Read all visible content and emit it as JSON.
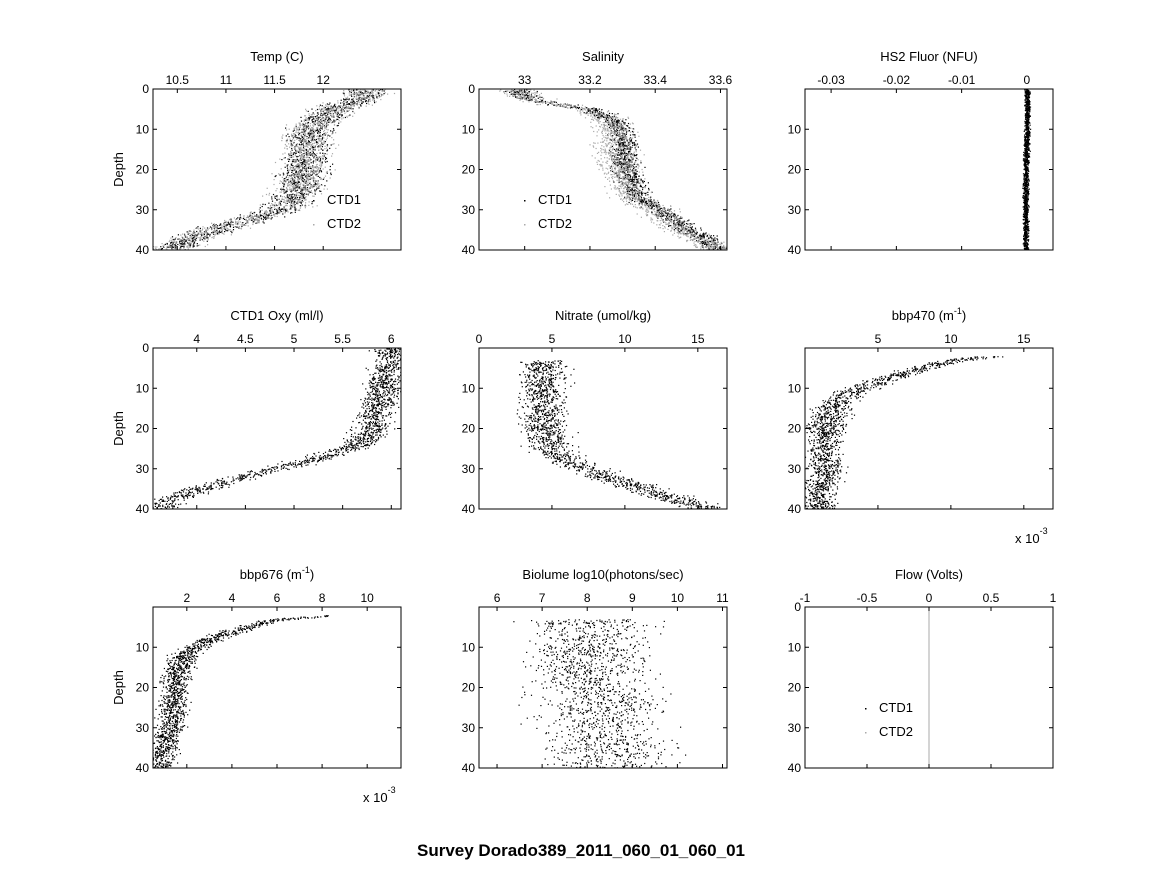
{
  "figure": {
    "suptitle": "Survey Dorado389_2011_060_01_060_01"
  },
  "chart_data": [
    {
      "id": "temp",
      "type": "scatter",
      "title": "Temp (C)",
      "title_sup": "",
      "xlabel": "",
      "ylabel": "Depth",
      "xlim": [
        10.25,
        12.8
      ],
      "ylim": [
        0,
        40
      ],
      "y_reversed": true,
      "x_axis": "top",
      "xticks": [
        10.5,
        11,
        11.5,
        12
      ],
      "xtick_labels": [
        "10.5",
        "11",
        "11.5",
        "12"
      ],
      "yticks": [
        0,
        10,
        20,
        30,
        40
      ],
      "ytick_labels": [
        "0",
        "10",
        "20",
        "30",
        "40"
      ],
      "multiplier": "",
      "legend": [
        "CTD1",
        "CTD2"
      ],
      "legend_position": "lower-right",
      "series": [
        {
          "name": "CTD1",
          "color": "#000000",
          "profile": [
            [
              0,
              12.45
            ],
            [
              2,
              12.4
            ],
            [
              5,
              12.1
            ],
            [
              10,
              11.85
            ],
            [
              15,
              11.82
            ],
            [
              20,
              11.8
            ],
            [
              24,
              11.76
            ],
            [
              28,
              11.65
            ],
            [
              30,
              11.55
            ],
            [
              32,
              11.3
            ],
            [
              34,
              11.0
            ],
            [
              36,
              10.75
            ],
            [
              38,
              10.55
            ],
            [
              40,
              10.4
            ]
          ],
          "spread": 0.22
        },
        {
          "name": "CTD2",
          "color": "#aaaaaa",
          "profile": [
            [
              0,
              12.45
            ],
            [
              2,
              12.4
            ],
            [
              5,
              12.1
            ],
            [
              10,
              11.85
            ],
            [
              15,
              11.82
            ],
            [
              20,
              11.8
            ],
            [
              24,
              11.76
            ],
            [
              28,
              11.65
            ],
            [
              30,
              11.55
            ],
            [
              32,
              11.3
            ],
            [
              34,
              11.0
            ],
            [
              36,
              10.75
            ],
            [
              38,
              10.55
            ],
            [
              40,
              10.4
            ]
          ],
          "spread": 0.25
        }
      ]
    },
    {
      "id": "salinity",
      "type": "scatter",
      "title": "Salinity",
      "title_sup": "",
      "xlabel": "",
      "ylabel": "",
      "xlim": [
        32.86,
        33.62
      ],
      "ylim": [
        0,
        40
      ],
      "y_reversed": true,
      "x_axis": "top",
      "xticks": [
        33,
        33.2,
        33.4,
        33.6
      ],
      "xtick_labels": [
        "33",
        "33.2",
        "33.4",
        "33.6"
      ],
      "yticks": [
        0,
        10,
        20,
        30,
        40
      ],
      "ytick_labels": [
        "0",
        "10",
        "20",
        "30",
        "40"
      ],
      "multiplier": "",
      "legend": [
        "CTD1",
        "CTD2"
      ],
      "legend_position": "lower-left",
      "series": [
        {
          "name": "CTD1",
          "color": "#000000",
          "profile": [
            [
              0,
              32.98
            ],
            [
              2,
              33.0
            ],
            [
              3,
              33.05
            ],
            [
              5,
              33.2
            ],
            [
              8,
              33.28
            ],
            [
              12,
              33.3
            ],
            [
              20,
              33.31
            ],
            [
              27,
              33.35
            ],
            [
              30,
              33.42
            ],
            [
              34,
              33.48
            ],
            [
              37,
              33.55
            ],
            [
              40,
              33.6
            ]
          ],
          "spread": 0.04
        },
        {
          "name": "CTD2",
          "color": "#aaaaaa",
          "profile": [
            [
              0,
              32.98
            ],
            [
              2,
              33.0
            ],
            [
              3,
              33.05
            ],
            [
              5,
              33.2
            ],
            [
              8,
              33.26
            ],
            [
              12,
              33.28
            ],
            [
              20,
              33.29
            ],
            [
              27,
              33.33
            ],
            [
              30,
              33.4
            ],
            [
              34,
              33.46
            ],
            [
              37,
              33.53
            ],
            [
              40,
              33.6
            ]
          ],
          "spread": 0.06
        }
      ]
    },
    {
      "id": "hs2",
      "type": "scatter",
      "title": "HS2 Fluor (NFU)",
      "title_sup": "",
      "xlabel": "",
      "ylabel": "",
      "xlim": [
        -0.034,
        0.004
      ],
      "ylim": [
        0,
        40
      ],
      "y_reversed": true,
      "x_axis": "top",
      "xticks": [
        -0.03,
        -0.02,
        -0.01,
        0
      ],
      "xtick_labels": [
        "-0.03",
        "-0.02",
        "-0.01",
        "0"
      ],
      "yticks": [
        10,
        20,
        30,
        40
      ],
      "ytick_labels": [
        "10",
        "20",
        "30",
        "40"
      ],
      "multiplier": "",
      "legend": [],
      "legend_position": "",
      "series": [
        {
          "name": "",
          "color": "#000000",
          "profile": [
            [
              0,
              0.0
            ],
            [
              10,
              0.0
            ],
            [
              20,
              -0.0002
            ],
            [
              30,
              -0.0002
            ],
            [
              40,
              -0.0002
            ]
          ],
          "spread": 0.0004
        }
      ]
    },
    {
      "id": "oxy",
      "type": "scatter",
      "title": "CTD1 Oxy (ml/l)",
      "title_sup": "",
      "xlabel": "",
      "ylabel": "Depth",
      "xlim": [
        3.55,
        6.1
      ],
      "ylim": [
        0,
        40
      ],
      "y_reversed": true,
      "x_axis": "top",
      "xticks": [
        4,
        4.5,
        5,
        5.5,
        6
      ],
      "xtick_labels": [
        "4",
        "4.5",
        "5",
        "5.5",
        "6"
      ],
      "yticks": [
        0,
        10,
        20,
        30,
        40
      ],
      "ytick_labels": [
        "0",
        "10",
        "20",
        "30",
        "40"
      ],
      "multiplier": "",
      "legend": [],
      "legend_position": "",
      "series": [
        {
          "name": "",
          "color": "#000000",
          "profile": [
            [
              0,
              6.0
            ],
            [
              5,
              5.95
            ],
            [
              10,
              5.9
            ],
            [
              15,
              5.85
            ],
            [
              20,
              5.8
            ],
            [
              24,
              5.65
            ],
            [
              27,
              5.3
            ],
            [
              30,
              4.8
            ],
            [
              33,
              4.3
            ],
            [
              36,
              3.9
            ],
            [
              38,
              3.7
            ],
            [
              40,
              3.6
            ]
          ],
          "spread": 0.18
        }
      ]
    },
    {
      "id": "nitrate",
      "type": "scatter",
      "title": "Nitrate (umol/kg)",
      "title_sup": "",
      "xlabel": "",
      "ylabel": "",
      "xlim": [
        0,
        17
      ],
      "ylim": [
        0,
        40
      ],
      "y_reversed": true,
      "x_axis": "top",
      "xticks": [
        0,
        5,
        10,
        15
      ],
      "xtick_labels": [
        "0",
        "5",
        "10",
        "15"
      ],
      "yticks": [
        10,
        20,
        30,
        40
      ],
      "ytick_labels": [
        "10",
        "20",
        "30",
        "40"
      ],
      "multiplier": "",
      "legend": [],
      "legend_position": "",
      "series": [
        {
          "name": "",
          "color": "#000000",
          "profile": [
            [
              3,
              4.5
            ],
            [
              10,
              4.3
            ],
            [
              20,
              4.5
            ],
            [
              25,
              5.0
            ],
            [
              28,
              6.0
            ],
            [
              31,
              8.0
            ],
            [
              34,
              10.5
            ],
            [
              37,
              13.0
            ],
            [
              40,
              16.0
            ]
          ],
          "spread": 1.5
        }
      ]
    },
    {
      "id": "bbp470",
      "type": "scatter",
      "title": "bbp470 (m",
      "title_sup": "-1",
      "xlabel": "",
      "ylabel": "",
      "xlim": [
        0,
        0.017
      ],
      "ylim": [
        0,
        40
      ],
      "y_reversed": true,
      "x_axis": "top",
      "xticks": [
        0.005,
        0.01,
        0.015
      ],
      "xtick_labels": [
        "5",
        "10",
        "15"
      ],
      "yticks": [
        10,
        20,
        30,
        40
      ],
      "ytick_labels": [
        "10",
        "20",
        "30",
        "40"
      ],
      "multiplier": "x 10",
      "multiplier_exp": "-3",
      "legend": [],
      "legend_position": "",
      "series": [
        {
          "name": "",
          "color": "#000000",
          "profile": [
            [
              2,
              0.013
            ],
            [
              3,
              0.01
            ],
            [
              5,
              0.008
            ],
            [
              8,
              0.005
            ],
            [
              12,
              0.0025
            ],
            [
              18,
              0.0015
            ],
            [
              25,
              0.0012
            ],
            [
              30,
              0.0015
            ],
            [
              35,
              0.001
            ],
            [
              40,
              0.0008
            ]
          ],
          "spread": 0.0012
        }
      ]
    },
    {
      "id": "bbp676",
      "type": "scatter",
      "title": "bbp676 (m",
      "title_sup": "-1",
      "xlabel": "",
      "ylabel": "Depth",
      "xlim": [
        0.0005,
        0.0115
      ],
      "ylim": [
        0,
        40
      ],
      "y_reversed": true,
      "x_axis": "top",
      "xticks": [
        0.002,
        0.004,
        0.006,
        0.008,
        0.01
      ],
      "xtick_labels": [
        "2",
        "4",
        "6",
        "8",
        "10"
      ],
      "yticks": [
        10,
        20,
        30,
        40
      ],
      "ytick_labels": [
        "10",
        "20",
        "30",
        "40"
      ],
      "multiplier": "x 10",
      "multiplier_exp": "-3",
      "legend": [],
      "legend_position": "",
      "series": [
        {
          "name": "",
          "color": "#000000",
          "profile": [
            [
              2,
              0.0085
            ],
            [
              3,
              0.006
            ],
            [
              5,
              0.0045
            ],
            [
              8,
              0.003
            ],
            [
              12,
              0.0018
            ],
            [
              18,
              0.0015
            ],
            [
              25,
              0.0014
            ],
            [
              30,
              0.0013
            ],
            [
              35,
              0.001
            ],
            [
              40,
              0.0008
            ]
          ],
          "spread": 0.0006
        }
      ]
    },
    {
      "id": "biolume",
      "type": "scatter",
      "title": "Biolume log10(photons/sec)",
      "title_sup": "",
      "xlabel": "",
      "ylabel": "",
      "xlim": [
        5.6,
        11.1
      ],
      "ylim": [
        0,
        40
      ],
      "y_reversed": true,
      "x_axis": "top",
      "xticks": [
        6,
        7,
        8,
        9,
        10,
        11
      ],
      "xtick_labels": [
        "6",
        "7",
        "8",
        "9",
        "10",
        "11"
      ],
      "yticks": [
        10,
        20,
        30,
        40
      ],
      "ytick_labels": [
        "10",
        "20",
        "30",
        "40"
      ],
      "multiplier": "",
      "legend": [],
      "legend_position": "",
      "series": [
        {
          "name": "",
          "color": "#000000",
          "profile": [
            [
              3,
              8.0
            ],
            [
              15,
              8.0
            ],
            [
              25,
              8.3
            ],
            [
              40,
              8.5
            ]
          ],
          "spread": 1.3
        }
      ]
    },
    {
      "id": "flow",
      "type": "scatter",
      "title": "Flow (Volts)",
      "title_sup": "",
      "xlabel": "",
      "ylabel": "",
      "xlim": [
        -1,
        1
      ],
      "ylim": [
        0,
        40
      ],
      "y_reversed": true,
      "x_axis": "top",
      "xticks": [
        -1,
        -0.5,
        0,
        0.5,
        1
      ],
      "xtick_labels": [
        "-1",
        "-0.5",
        "0",
        "0.5",
        "1"
      ],
      "yticks": [
        0,
        10,
        20,
        30,
        40
      ],
      "ytick_labels": [
        "0",
        "10",
        "20",
        "30",
        "40"
      ],
      "multiplier": "",
      "legend": [
        "CTD1",
        "CTD2"
      ],
      "legend_position": "lower-left",
      "series": [
        {
          "name": "CTD1",
          "color": "#000000",
          "profile": [],
          "spread": 0
        },
        {
          "name": "CTD2",
          "color": "#aaaaaa",
          "profile": [
            [
              0,
              0
            ],
            [
              40,
              0
            ]
          ],
          "spread": 0
        }
      ]
    }
  ]
}
